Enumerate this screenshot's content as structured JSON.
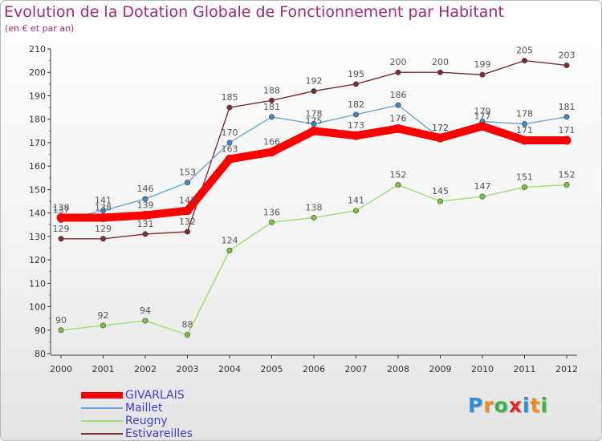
{
  "title": "Evolution de la Dotation Globale de Fonctionnement par Habitant",
  "subtitle": "(en € et par an)",
  "brand": {
    "letters": [
      "P",
      "r",
      "o",
      "x",
      "i",
      "t",
      "i"
    ],
    "colors": [
      "#2a8fd6",
      "#f08c1a",
      "#38b44a",
      "#e02a2a",
      "#2a8fd6",
      "#f08c1a",
      "#38b44a"
    ]
  },
  "chart_data": {
    "type": "line",
    "categories": [
      "2000",
      "2001",
      "2002",
      "2003",
      "2004",
      "2005",
      "2006",
      "2007",
      "2008",
      "2009",
      "2010",
      "2011",
      "2012"
    ],
    "ylim": [
      80,
      210
    ],
    "yticks": [
      80,
      90,
      100,
      110,
      120,
      130,
      140,
      150,
      160,
      170,
      180,
      190,
      200,
      210
    ],
    "grid": false,
    "legend_position": "bottom-left",
    "series": [
      {
        "name": "Estivareilles",
        "color": "#7b2d2d",
        "values": [
          129,
          129,
          131,
          132,
          185,
          188,
          192,
          195,
          200,
          200,
          199,
          205,
          203
        ]
      },
      {
        "name": "Reugny",
        "color": "#9ee06a",
        "marker": "#7fc13e",
        "values": [
          90,
          92,
          94,
          88,
          124,
          136,
          138,
          141,
          152,
          145,
          147,
          151,
          152
        ]
      },
      {
        "name": "Maillet",
        "color": "#6aa6d6",
        "marker": "#3d88cc",
        "values": [
          137,
          141,
          146,
          153,
          170,
          181,
          178,
          182,
          186,
          172,
          179,
          178,
          181
        ]
      },
      {
        "name": "GIVARLAIS",
        "color": "#ff0000",
        "values": [
          138,
          138,
          139,
          141,
          163,
          166,
          175,
          173,
          176,
          172,
          177,
          171,
          171
        ]
      }
    ]
  },
  "legend": [
    "GIVARLAIS",
    "Maillet",
    "Reugny",
    "Estivareilles"
  ],
  "legend_colors": [
    "#ff0000",
    "#6aa6d6",
    "#9ee06a",
    "#7b2d2d"
  ]
}
